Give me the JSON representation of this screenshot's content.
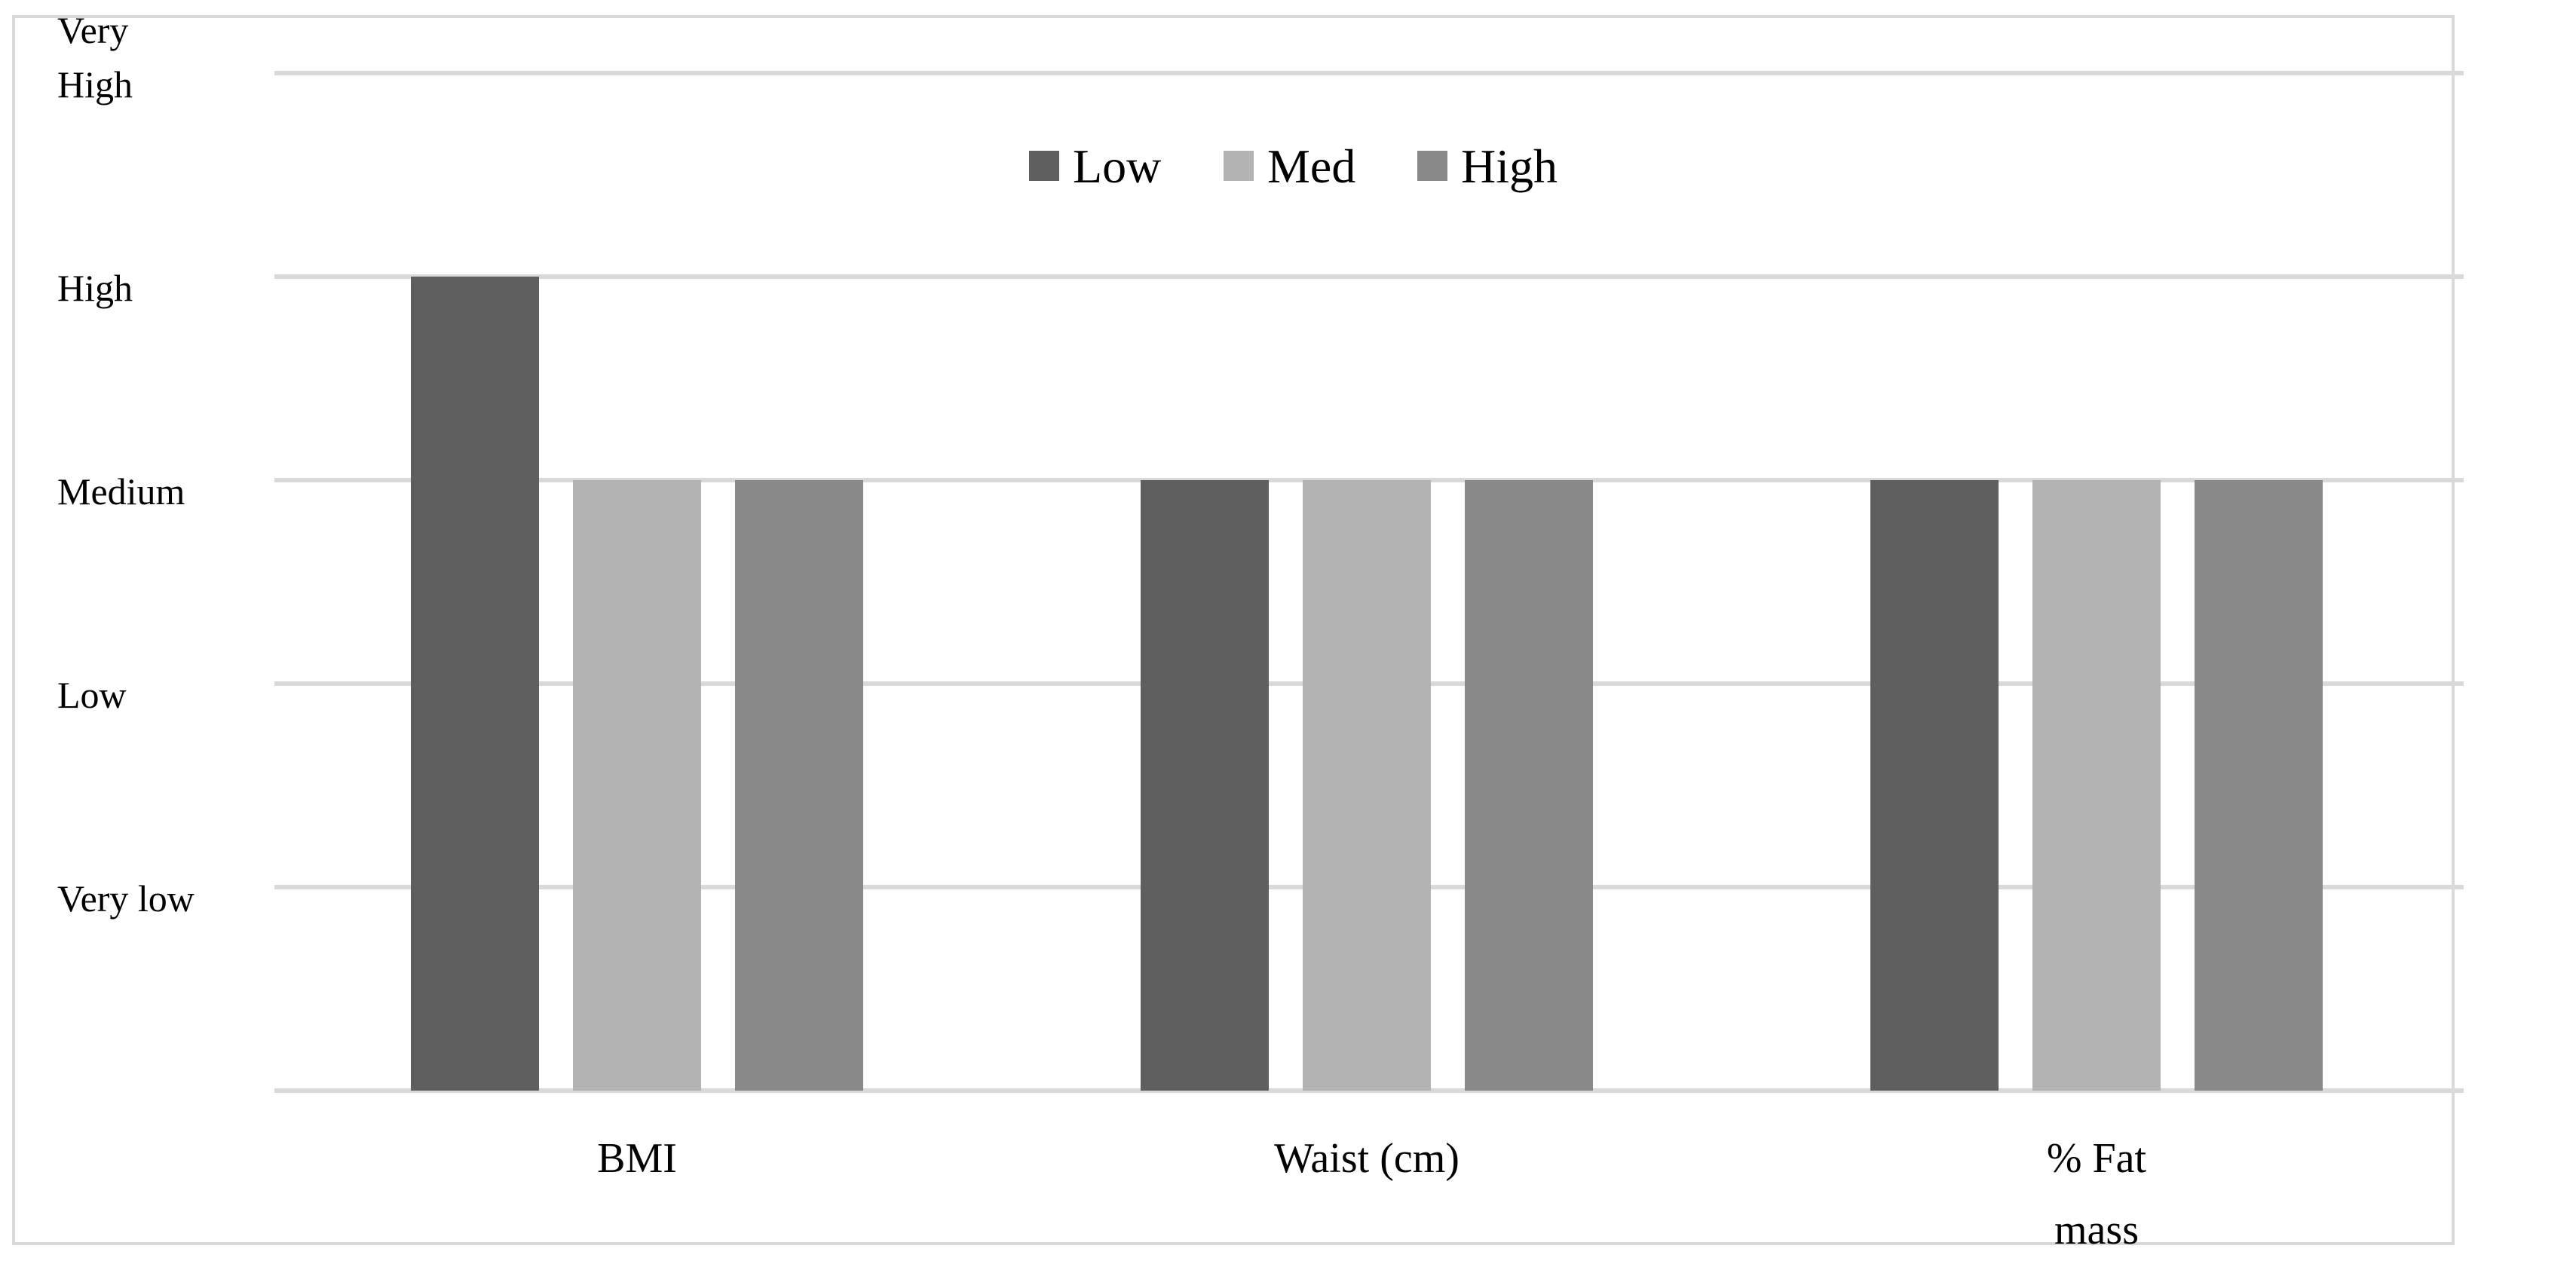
{
  "chart_data": {
    "type": "bar",
    "categories": [
      "BMI",
      "Waist (cm)",
      "% Fat mass"
    ],
    "category_label_lines": [
      [
        "BMI"
      ],
      [
        "Waist (cm)"
      ],
      [
        "% Fat",
        "mass"
      ]
    ],
    "series": [
      {
        "name": "Low",
        "values": [
          4,
          3,
          3
        ],
        "color": "#5f5f5f"
      },
      {
        "name": "Med",
        "values": [
          3,
          3,
          3
        ],
        "color": "#b3b3b3"
      },
      {
        "name": "High",
        "values": [
          3,
          3,
          3
        ],
        "color": "#898989"
      }
    ],
    "y_tick_labels": [
      {
        "value": 1,
        "lines": [
          "Very low"
        ]
      },
      {
        "value": 2,
        "lines": [
          "Low"
        ]
      },
      {
        "value": 3,
        "lines": [
          "Medium"
        ]
      },
      {
        "value": 4,
        "lines": [
          "High"
        ]
      },
      {
        "value": 5,
        "lines": [
          "Very",
          "High"
        ]
      }
    ],
    "ylim": [
      0,
      5
    ],
    "grid": true,
    "legend_position": "top-center",
    "title": "",
    "xlabel": "",
    "ylabel": ""
  },
  "colors": {
    "gridline": "#d9d9d9",
    "frame": "#d9d9d9"
  }
}
